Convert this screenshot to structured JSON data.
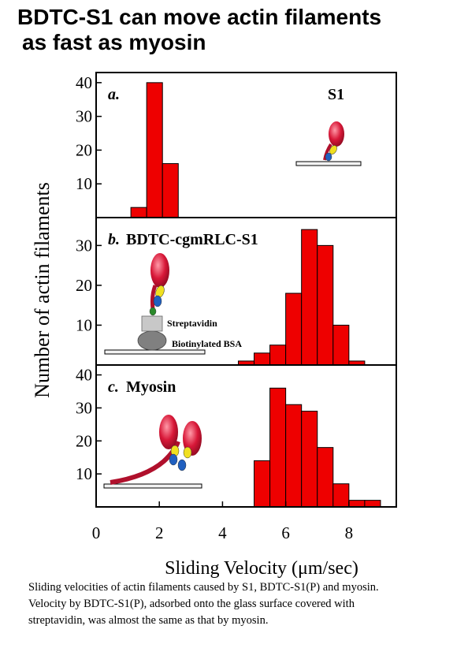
{
  "title": {
    "line1": "BDTC-S1 can move actin filaments",
    "line2": "as fast as myosin"
  },
  "caption": {
    "line1": "Sliding velocities of actin filaments caused by S1, BDTC-S1(P) and myosin.",
    "line2": "Velocity by BDTC-S1(P), adsorbed onto the glass surface covered with",
    "line3": "streptavidin, was almost the same as that by myosin."
  },
  "colors": {
    "bar": "#ee0000",
    "bar_edge": "#000000"
  },
  "chart_data": {
    "type": "bar",
    "xlabel": "Sliding Velocity (μm/sec)",
    "ylabel": "Number of actin filaments",
    "xlim": [
      0,
      9.5
    ],
    "xticks": [
      "0",
      "2",
      "4",
      "6",
      "8"
    ],
    "bin_width": 0.5,
    "panels": [
      {
        "letter": "a.",
        "label": "S1",
        "ylim": [
          0,
          43
        ],
        "yticks": [
          "10",
          "20",
          "30",
          "40"
        ],
        "bin_starts": [
          1.1,
          1.6,
          2.1
        ],
        "values": [
          3,
          40,
          16
        ]
      },
      {
        "letter": "b.",
        "label": "BDTC-cgmRLC-S1",
        "ylim": [
          0,
          37
        ],
        "yticks": [
          "10",
          "20",
          "30"
        ],
        "annotations": [
          "Streptavidin",
          "Biotinylated BSA"
        ],
        "bin_starts": [
          4.5,
          5.0,
          5.5,
          6.0,
          6.5,
          7.0,
          7.5,
          8.0
        ],
        "values": [
          1,
          3,
          5,
          18,
          34,
          30,
          10,
          1
        ]
      },
      {
        "letter": "c.",
        "label": "Myosin",
        "ylim": [
          0,
          43
        ],
        "yticks": [
          "10",
          "20",
          "30",
          "40"
        ],
        "bin_starts": [
          5.0,
          5.5,
          6.0,
          6.5,
          7.0,
          7.5,
          8.0,
          8.5
        ],
        "values": [
          14,
          36,
          31,
          29,
          18,
          7,
          2,
          2
        ]
      }
    ]
  }
}
